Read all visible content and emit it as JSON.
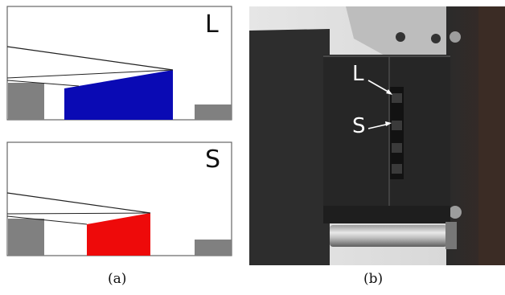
{
  "panel_a": {
    "top_label": "L",
    "bottom_label": "S",
    "caption": "(a)",
    "colors": {
      "L_block": "#0a0ab4",
      "S_block": "#ee0a0a",
      "support": "#808080",
      "frame": "#666666"
    }
  },
  "panel_b": {
    "label_L": "L",
    "label_S": "S",
    "caption": "(b)"
  }
}
